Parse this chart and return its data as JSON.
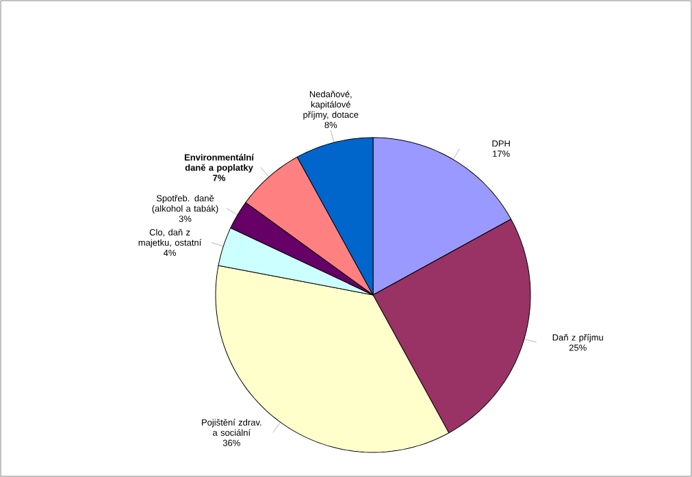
{
  "chart_data": {
    "type": "pie",
    "categories": [
      "DPH",
      "Daň z příjmu",
      "Pojištění zdrav. a sociální",
      "Clo, daň z majetku, ostatní",
      "Spotřeb. daně (alkohol a tabák)",
      "**Environmentální daně a poplatky**",
      "Nedaňové, kapitálové příjmy, dotace"
    ],
    "values": [
      17,
      25,
      36,
      4,
      3,
      7,
      8
    ],
    "value_labels": [
      "17%",
      "25%",
      "36%",
      "4%",
      "3%",
      "**7%**",
      "8%"
    ],
    "colors": [
      "#9999ff",
      "#993366",
      "#ffffcc",
      "#ccffff",
      "#660066",
      "#ff8080",
      "#0066cc"
    ],
    "legend": false
  }
}
